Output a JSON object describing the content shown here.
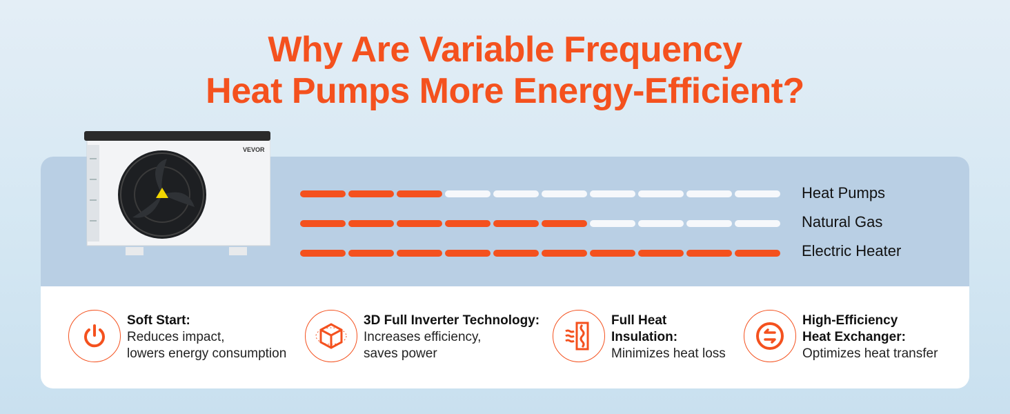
{
  "title_line1": "Why Are Variable Frequency",
  "title_line2": "Heat Pumps More Energy-Efficient?",
  "brand": "VEVOR",
  "accent": "#f4511e",
  "chart_data": {
    "type": "bar",
    "segments_total": 10,
    "categories": [
      "Heat Pumps",
      "Natural Gas",
      "Electric Heater"
    ],
    "values": [
      3,
      6,
      10
    ]
  },
  "features": [
    {
      "title": "Soft Start:",
      "lines": [
        "Reduces impact,",
        "lowers energy consumption"
      ],
      "icon": "power-icon"
    },
    {
      "title": "3D Full Inverter Technology:",
      "lines": [
        "Increases efficiency,",
        "saves power"
      ],
      "icon": "cube-icon"
    },
    {
      "title": "Full Heat\nInsulation:",
      "lines": [
        "Minimizes heat loss"
      ],
      "icon": "insulation-icon"
    },
    {
      "title": "High-Efficiency\nHeat Exchanger:",
      "lines": [
        "Optimizes heat transfer"
      ],
      "icon": "exchange-icon"
    }
  ]
}
